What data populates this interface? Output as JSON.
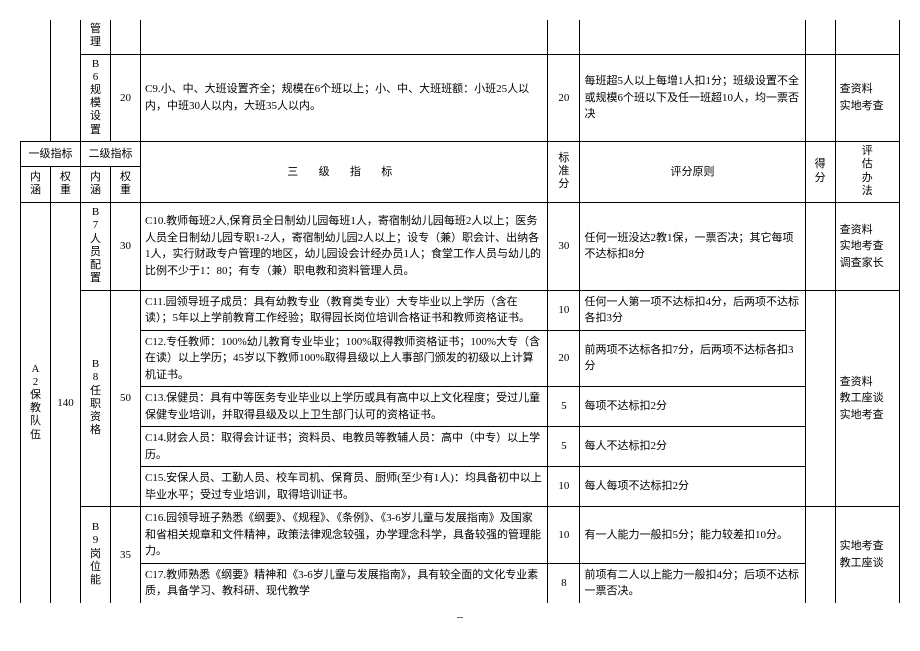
{
  "top_rows": {
    "r1": {
      "b_label": "管理"
    },
    "r2": {
      "b_label": "B6规模设置",
      "b_weight": "20",
      "c_text": "C9.小、中、大班设置齐全；规模在6个班以上；小、中、大班班额：小班25人以内，中班30人以内，大班35人以内。",
      "std": "20",
      "rule": "每班超5人以上每增1人扣1分；班级设置不全或规模6个班以下及任一班超10人，均一票否决",
      "method": "查资料\n实地考查"
    }
  },
  "headers": {
    "l1": "一级指标",
    "l2": "二级指标",
    "l3": "三  级  指  标",
    "std": "标准分",
    "rule": "评分原则",
    "score": "得分",
    "method": "评估办法",
    "nh": "内涵",
    "wt": "权重"
  },
  "a2": {
    "label": "A2保教队伍",
    "weight": "140"
  },
  "b7": {
    "label": "B7人员配置",
    "weight": "30",
    "c10": "C10.教师每班2人,保育员全日制幼儿园每班1人，寄宿制幼儿园每班2人以上；医务人员全日制幼儿园专职1-2人，寄宿制幼儿园2人以上；设专（兼）职会计、出纳各1人，实行财政专户管理的地区，幼儿园设会计经办员1人；食堂工作人员与幼儿的比例不少于1：80；有专（兼）职电教和资料管理人员。",
    "std": "30",
    "rule": "任何一班没达2教1保，一票否决；其它每项不达标扣8分",
    "method": "查资料\n实地考查\n调查家长"
  },
  "b8": {
    "label": "B8任职资格",
    "weight": "50",
    "method": "查资料\n教工座谈\n实地考查",
    "c11": {
      "text": "C11.园领导班子成员：具有幼教专业（教育类专业）大专毕业以上学历（含在读）；5年以上学前教育工作经验；取得园长岗位培训合格证书和教师资格证书。",
      "std": "10",
      "rule": "任何一人第一项不达标扣4分，后两项不达标各扣3分"
    },
    "c12": {
      "text": "C12.专任教师：100%幼儿教育专业毕业；100%取得教师资格证书；100%大专（含在读）以上学历；45岁以下教师100%取得县级以上人事部门颁发的初级以上计算机证书。",
      "std": "20",
      "rule": "前两项不达标各扣7分，后两项不达标各扣3分"
    },
    "c13": {
      "text": "C13.保健员：具有中等医务专业毕业以上学历或具有高中以上文化程度；受过儿童保健专业培训，并取得县级及以上卫生部门认可的资格证书。",
      "std": "5",
      "rule": "每项不达标扣2分"
    },
    "c14": {
      "text": "C14.财会人员：取得会计证书；资料员、电教员等教辅人员：高中（中专）以上学历。",
      "std": "5",
      "rule": "每人不达标扣2分"
    },
    "c15": {
      "text": "C15.安保人员、工勤人员、校车司机、保育员、厨师(至少有1人)：均具备初中以上毕业水平；受过专业培训，取得培训证书。",
      "std": "10",
      "rule": "每人每项不达标扣2分"
    }
  },
  "b9": {
    "label": "B9岗位能",
    "weight": "35",
    "method": "实地考查\n教工座谈",
    "c16": {
      "text": "C16.园领导班子熟悉《纲要》、《规程》、《条例》、《3-6岁儿童与发展指南》及国家和省相关规章和文件精神，政策法律观念较强，办学理念科学，具备较强的管理能力。",
      "std": "10",
      "rule": "有一人能力一般扣5分；能力较差扣10分。"
    },
    "c17": {
      "text": "C17.教师熟悉《纲要》精神和《3-6岁儿童与发展指南》，具有较全面的文化专业素质，具备学习、教科研、现代教学",
      "std": "8",
      "rule": "前项有二人以上能力一般扣4分；后项不达标一票否决。"
    }
  },
  "footer": "–"
}
